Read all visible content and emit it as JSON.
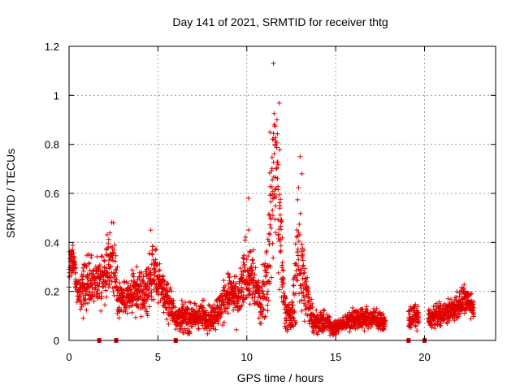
{
  "chart_data": {
    "type": "scatter",
    "title": "Day 141 of 2021, SRMTID for receiver thtg",
    "xlabel": "GPS time / hours",
    "ylabel": "SRMTID / TECUs",
    "xlim": [
      0,
      24
    ],
    "ylim": [
      0,
      1.2
    ],
    "xticks": [
      0,
      5,
      10,
      15,
      20
    ],
    "yticks": [
      0,
      0.2,
      0.4,
      0.6,
      0.8,
      1.0,
      1.2
    ],
    "xtick_labels": [
      "0",
      "5",
      "10",
      "15",
      "20"
    ],
    "ytick_labels": [
      "0",
      "0.2",
      "0.4",
      "0.6",
      "0.8",
      "1",
      "1.2"
    ],
    "grid": true,
    "marker": "+",
    "color": "#e00000",
    "series": [
      {
        "name": "SRMTID",
        "profile": [
          [
            0.0,
            0.3,
            0.06
          ],
          [
            0.25,
            0.33,
            0.04
          ],
          [
            0.5,
            0.18,
            0.04
          ],
          [
            1.0,
            0.22,
            0.08
          ],
          [
            1.5,
            0.24,
            0.07
          ],
          [
            2.0,
            0.28,
            0.08
          ],
          [
            2.4,
            0.34,
            0.1
          ],
          [
            2.8,
            0.17,
            0.05
          ],
          [
            3.3,
            0.17,
            0.05
          ],
          [
            3.8,
            0.2,
            0.06
          ],
          [
            4.3,
            0.19,
            0.06
          ],
          [
            4.7,
            0.28,
            0.09
          ],
          [
            5.2,
            0.22,
            0.06
          ],
          [
            5.5,
            0.17,
            0.05
          ],
          [
            6.0,
            0.1,
            0.04
          ],
          [
            6.8,
            0.09,
            0.04
          ],
          [
            7.5,
            0.1,
            0.04
          ],
          [
            8.0,
            0.09,
            0.04
          ],
          [
            8.5,
            0.13,
            0.05
          ],
          [
            9.0,
            0.2,
            0.06
          ],
          [
            9.5,
            0.15,
            0.06
          ],
          [
            10.0,
            0.3,
            0.1
          ],
          [
            10.3,
            0.25,
            0.09
          ],
          [
            10.8,
            0.15,
            0.05
          ],
          [
            11.2,
            0.3,
            0.14
          ],
          [
            11.5,
            0.7,
            0.25
          ],
          [
            11.8,
            0.6,
            0.25
          ],
          [
            12.1,
            0.15,
            0.05
          ],
          [
            12.5,
            0.08,
            0.04
          ],
          [
            13.0,
            0.4,
            0.2
          ],
          [
            13.3,
            0.18,
            0.08
          ],
          [
            13.8,
            0.08,
            0.03
          ],
          [
            14.5,
            0.07,
            0.03
          ],
          [
            15.0,
            0.05,
            0.02
          ],
          [
            15.5,
            0.07,
            0.02
          ],
          [
            16.0,
            0.09,
            0.03
          ],
          [
            17.0,
            0.09,
            0.03
          ],
          [
            17.8,
            0.07,
            0.02
          ],
          [
            19.1,
            0.09,
            0.03
          ],
          [
            19.5,
            0.1,
            0.03
          ],
          [
            20.3,
            0.09,
            0.03
          ],
          [
            21.0,
            0.11,
            0.03
          ],
          [
            21.7,
            0.13,
            0.04
          ],
          [
            22.2,
            0.17,
            0.04
          ],
          [
            22.8,
            0.13,
            0.03
          ]
        ],
        "data_gaps_hours": [
          [
            17.8,
            19.1
          ],
          [
            19.7,
            20.2
          ]
        ],
        "peaks": [
          [
            11.5,
            1.13
          ],
          [
            11.7,
            0.9
          ],
          [
            11.3,
            0.85
          ],
          [
            11.6,
            0.8
          ],
          [
            13.0,
            0.75
          ],
          [
            13.1,
            0.68
          ],
          [
            10.1,
            0.58
          ],
          [
            0.1,
            0.36
          ],
          [
            2.5,
            0.48
          ],
          [
            4.6,
            0.45
          ]
        ]
      }
    ],
    "zero_markers_hours": [
      1.7,
      2.65,
      6.0,
      19.1,
      20.0
    ]
  }
}
